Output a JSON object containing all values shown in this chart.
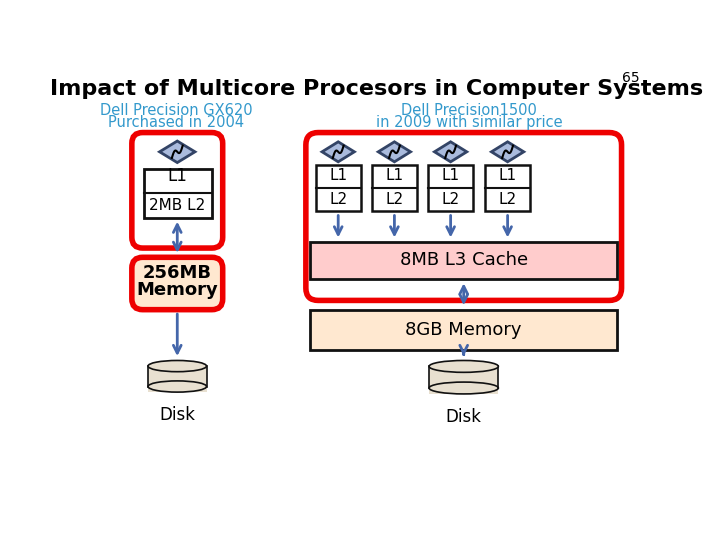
{
  "title": "Impact of Multicore Procesors in Computer Systems",
  "title_fontsize": 16,
  "slide_number": "65",
  "left_label_line1": "Dell Precision GX620",
  "left_label_line2": "Purchased in 2004",
  "right_label_line1": "Dell Precision1500",
  "right_label_line2": "in 2009 with similar price",
  "label_color": "#3399CC",
  "background_color": "#ffffff",
  "red_border_color": "#EE0000",
  "box_border_color": "#111111",
  "arrow_color": "#4466AA",
  "l3_cache_fill": "#FFCCCC",
  "memory_fill": "#FFE8D0",
  "disk_fill": "#E8E0D0",
  "cpu_fill": "#AABBDD",
  "cpu_edge": "#334466"
}
